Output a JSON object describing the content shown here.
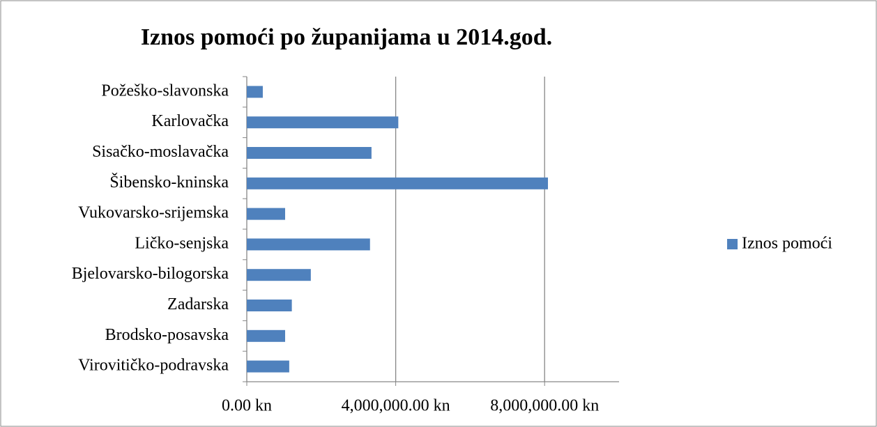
{
  "chart_data": {
    "type": "bar",
    "orientation": "horizontal",
    "title": "Iznos pomoći po županijama u 2014.god.",
    "categories": [
      "Požeško-slavonska",
      "Karlovačka",
      "Sisačko-moslavačka",
      "Šibensko-kninska",
      "Vukovarsko-srijemska",
      "Ličko-senjska",
      "Bjelovarsko-bilogorska",
      "Zadarska",
      "Brodsko-posavska",
      "Virovitičko-podravska"
    ],
    "series": [
      {
        "name": "Iznos pomoći",
        "color": "#4f81bd",
        "values": [
          430000,
          4070000,
          3350000,
          8090000,
          1030000,
          3310000,
          1720000,
          1210000,
          1030000,
          1140000
        ]
      }
    ],
    "xlim": [
      0,
      10000000
    ],
    "xticks": [
      {
        "value": 0,
        "label": "0.00 kn"
      },
      {
        "value": 4000000,
        "label": "4,000,000.00 kn"
      },
      {
        "value": 8000000,
        "label": "8,000,000.00 kn"
      }
    ],
    "grid": true,
    "legend": "right"
  }
}
